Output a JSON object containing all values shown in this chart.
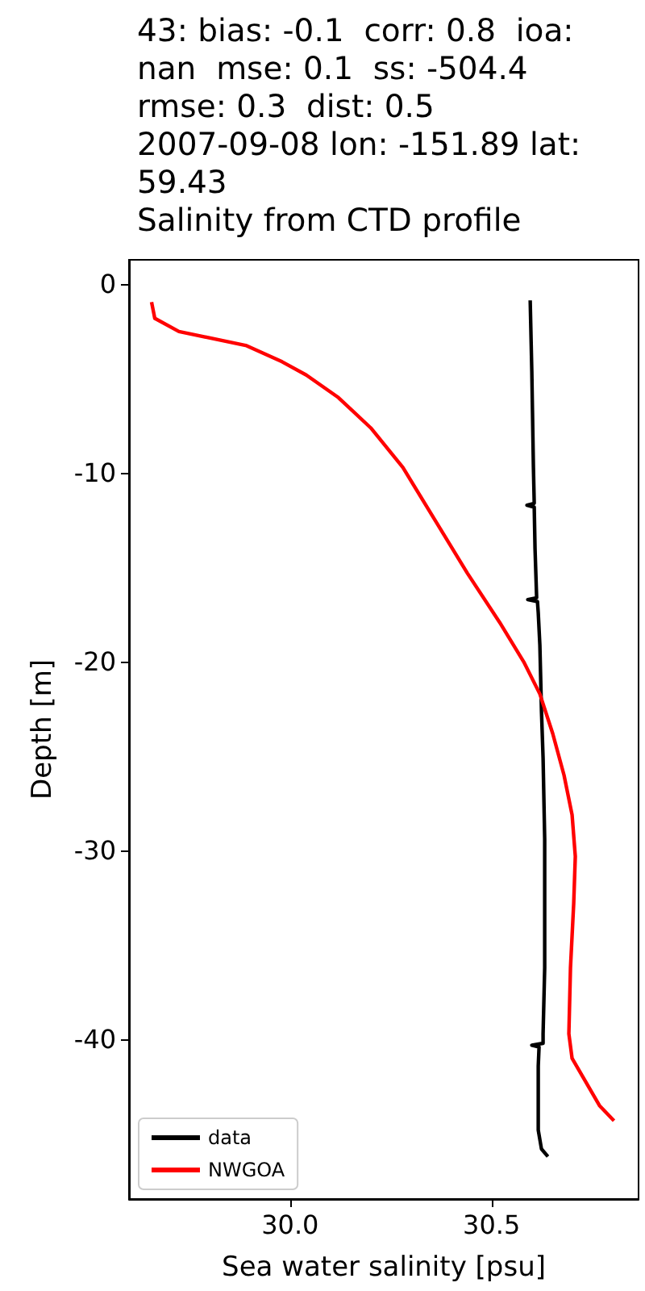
{
  "chart_data": {
    "type": "line",
    "title": "43: bias: -0.1  corr: 0.8  ioa:\nnan  mse: 0.1  ss: -504.4\nrmse: 0.3  dist: 0.5\n2007-09-08 lon: -151.89 lat:\n59.43\nSalinity from CTD profile",
    "xlabel": "Sea water salinity [psu]",
    "ylabel": "Depth [m]",
    "xlim": [
      29.6,
      30.865
    ],
    "ylim": [
      -48.45,
      1.3
    ],
    "xticks": [
      {
        "value": 30.0,
        "label": "30.0"
      },
      {
        "value": 30.5,
        "label": "30.5"
      }
    ],
    "yticks": [
      0,
      -10,
      -20,
      -30,
      -40
    ],
    "grid": false,
    "legend": "bottom left",
    "marker": "none",
    "line_style": "solid",
    "series": [
      {
        "name": "data",
        "color": "#000000",
        "x": [
          30.596,
          30.6,
          30.604,
          30.606,
          30.588,
          30.606,
          30.608,
          30.612,
          30.59,
          30.614,
          30.616,
          30.62,
          30.624,
          30.628,
          30.632,
          30.632,
          30.628,
          30.628,
          30.6,
          30.618,
          30.616,
          30.616,
          30.624,
          30.64
        ],
        "values": [
          -0.85,
          -4.6,
          -9.7,
          -11.6,
          -11.7,
          -11.8,
          -14,
          -16.6,
          -16.7,
          -16.8,
          -17.4,
          -19.1,
          -22.6,
          -25.1,
          -29.4,
          -36.2,
          -39.7,
          -40.2,
          -40.3,
          -40.4,
          -41.4,
          -44.8,
          -45.8,
          -46.2
        ]
      },
      {
        "name": "NWGOA",
        "color": "#ff0000",
        "x": [
          29.656,
          29.664,
          29.724,
          29.892,
          29.98,
          30.04,
          30.12,
          30.2,
          30.28,
          30.36,
          30.44,
          30.52,
          30.58,
          30.62,
          30.652,
          30.68,
          30.7,
          30.708,
          30.704,
          30.696,
          30.692,
          30.7,
          30.768,
          30.804
        ],
        "values": [
          -0.94,
          -1.8,
          -2.5,
          -3.25,
          -4.1,
          -4.8,
          -6.0,
          -7.6,
          -9.7,
          -12.5,
          -15.3,
          -17.9,
          -20,
          -21.7,
          -23.8,
          -26,
          -28.1,
          -30.3,
          -32.8,
          -36.2,
          -39.7,
          -41,
          -43.5,
          -44.3
        ]
      }
    ]
  }
}
